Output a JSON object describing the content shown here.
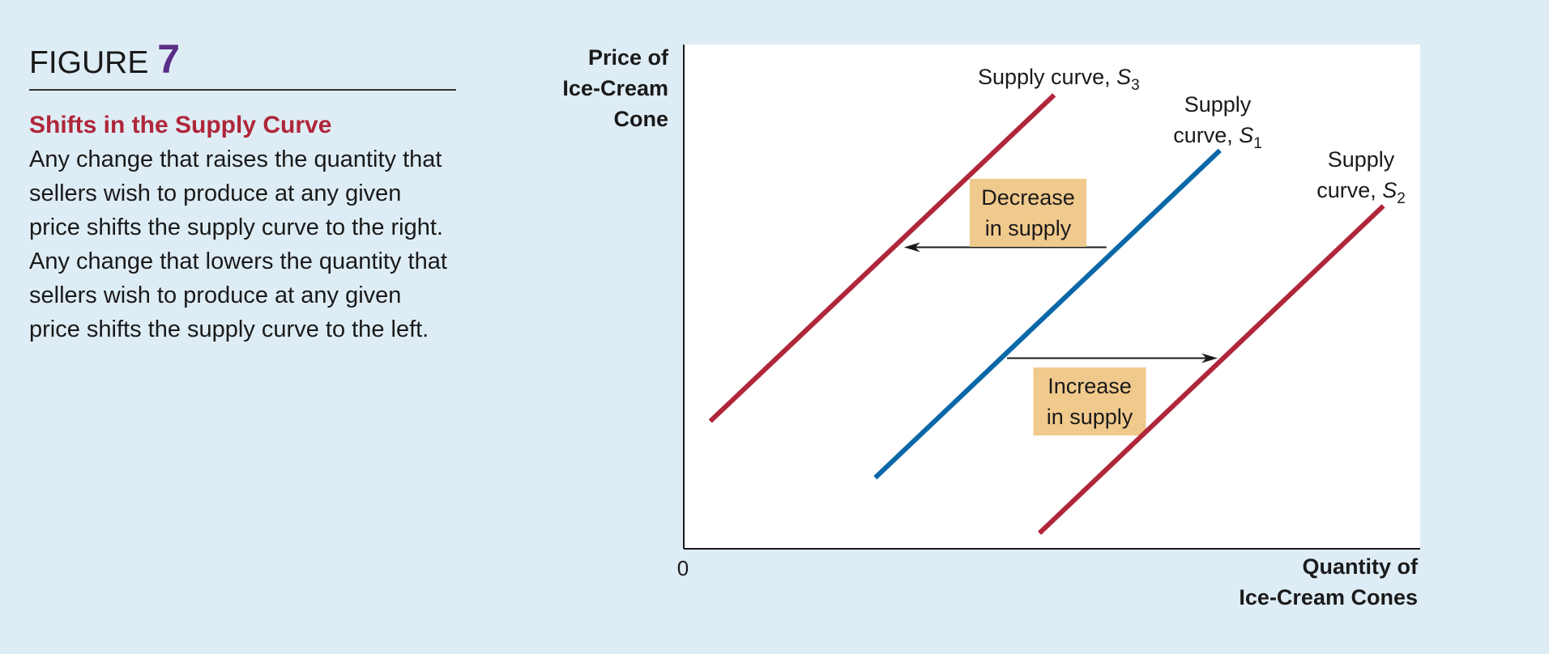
{
  "figure": {
    "label": "FIGURE",
    "number": "7",
    "subtitle": "Shifts in the Supply Curve",
    "description": "Any change that raises the quantity that sellers wish to produce at any given price shifts the supply curve to the right. Any change that lowers the quantity that sellers wish to produce at any given price shifts the supply curve to the left."
  },
  "chart_data": {
    "type": "line",
    "ylabel": [
      "Price of",
      "Ice-Cream",
      "Cone"
    ],
    "xlabel": [
      "Quantity of",
      "Ice-Cream Cones"
    ],
    "origin_label": "0",
    "xlim": [
      0,
      100
    ],
    "ylim": [
      0,
      100
    ],
    "colors": {
      "S1": "#0a68a8",
      "S2": "#b0263a",
      "S3": "#b0263a",
      "annotation_box": "#f0c98c",
      "arrow": "#1a1a1a"
    },
    "series": [
      {
        "id": "S3",
        "label_prefix": "Supply curve, ",
        "label_var": "S",
        "label_sub": "3",
        "x": [
          3.6,
          50.3
        ],
        "y": [
          25.3,
          90.0
        ]
      },
      {
        "id": "S1",
        "label_prefix": "Supply curve, ",
        "label_var": "S",
        "label_sub": "1",
        "x": [
          26.0,
          72.8
        ],
        "y": [
          14.1,
          79.0
        ]
      },
      {
        "id": "S2",
        "label_prefix": "Supply curve, ",
        "label_var": "S",
        "label_sub": "2",
        "x": [
          48.3,
          95.0
        ],
        "y": [
          3.1,
          68.0
        ]
      }
    ],
    "annotations": [
      {
        "id": "decrease",
        "lines": [
          "Decrease",
          "in supply"
        ],
        "from_x": 57.4,
        "to_x": 29.9,
        "y": 59.8
      },
      {
        "id": "increase",
        "lines": [
          "Increase",
          "in supply"
        ],
        "from_x": 43.9,
        "to_x": 72.5,
        "y": 37.8
      }
    ]
  }
}
